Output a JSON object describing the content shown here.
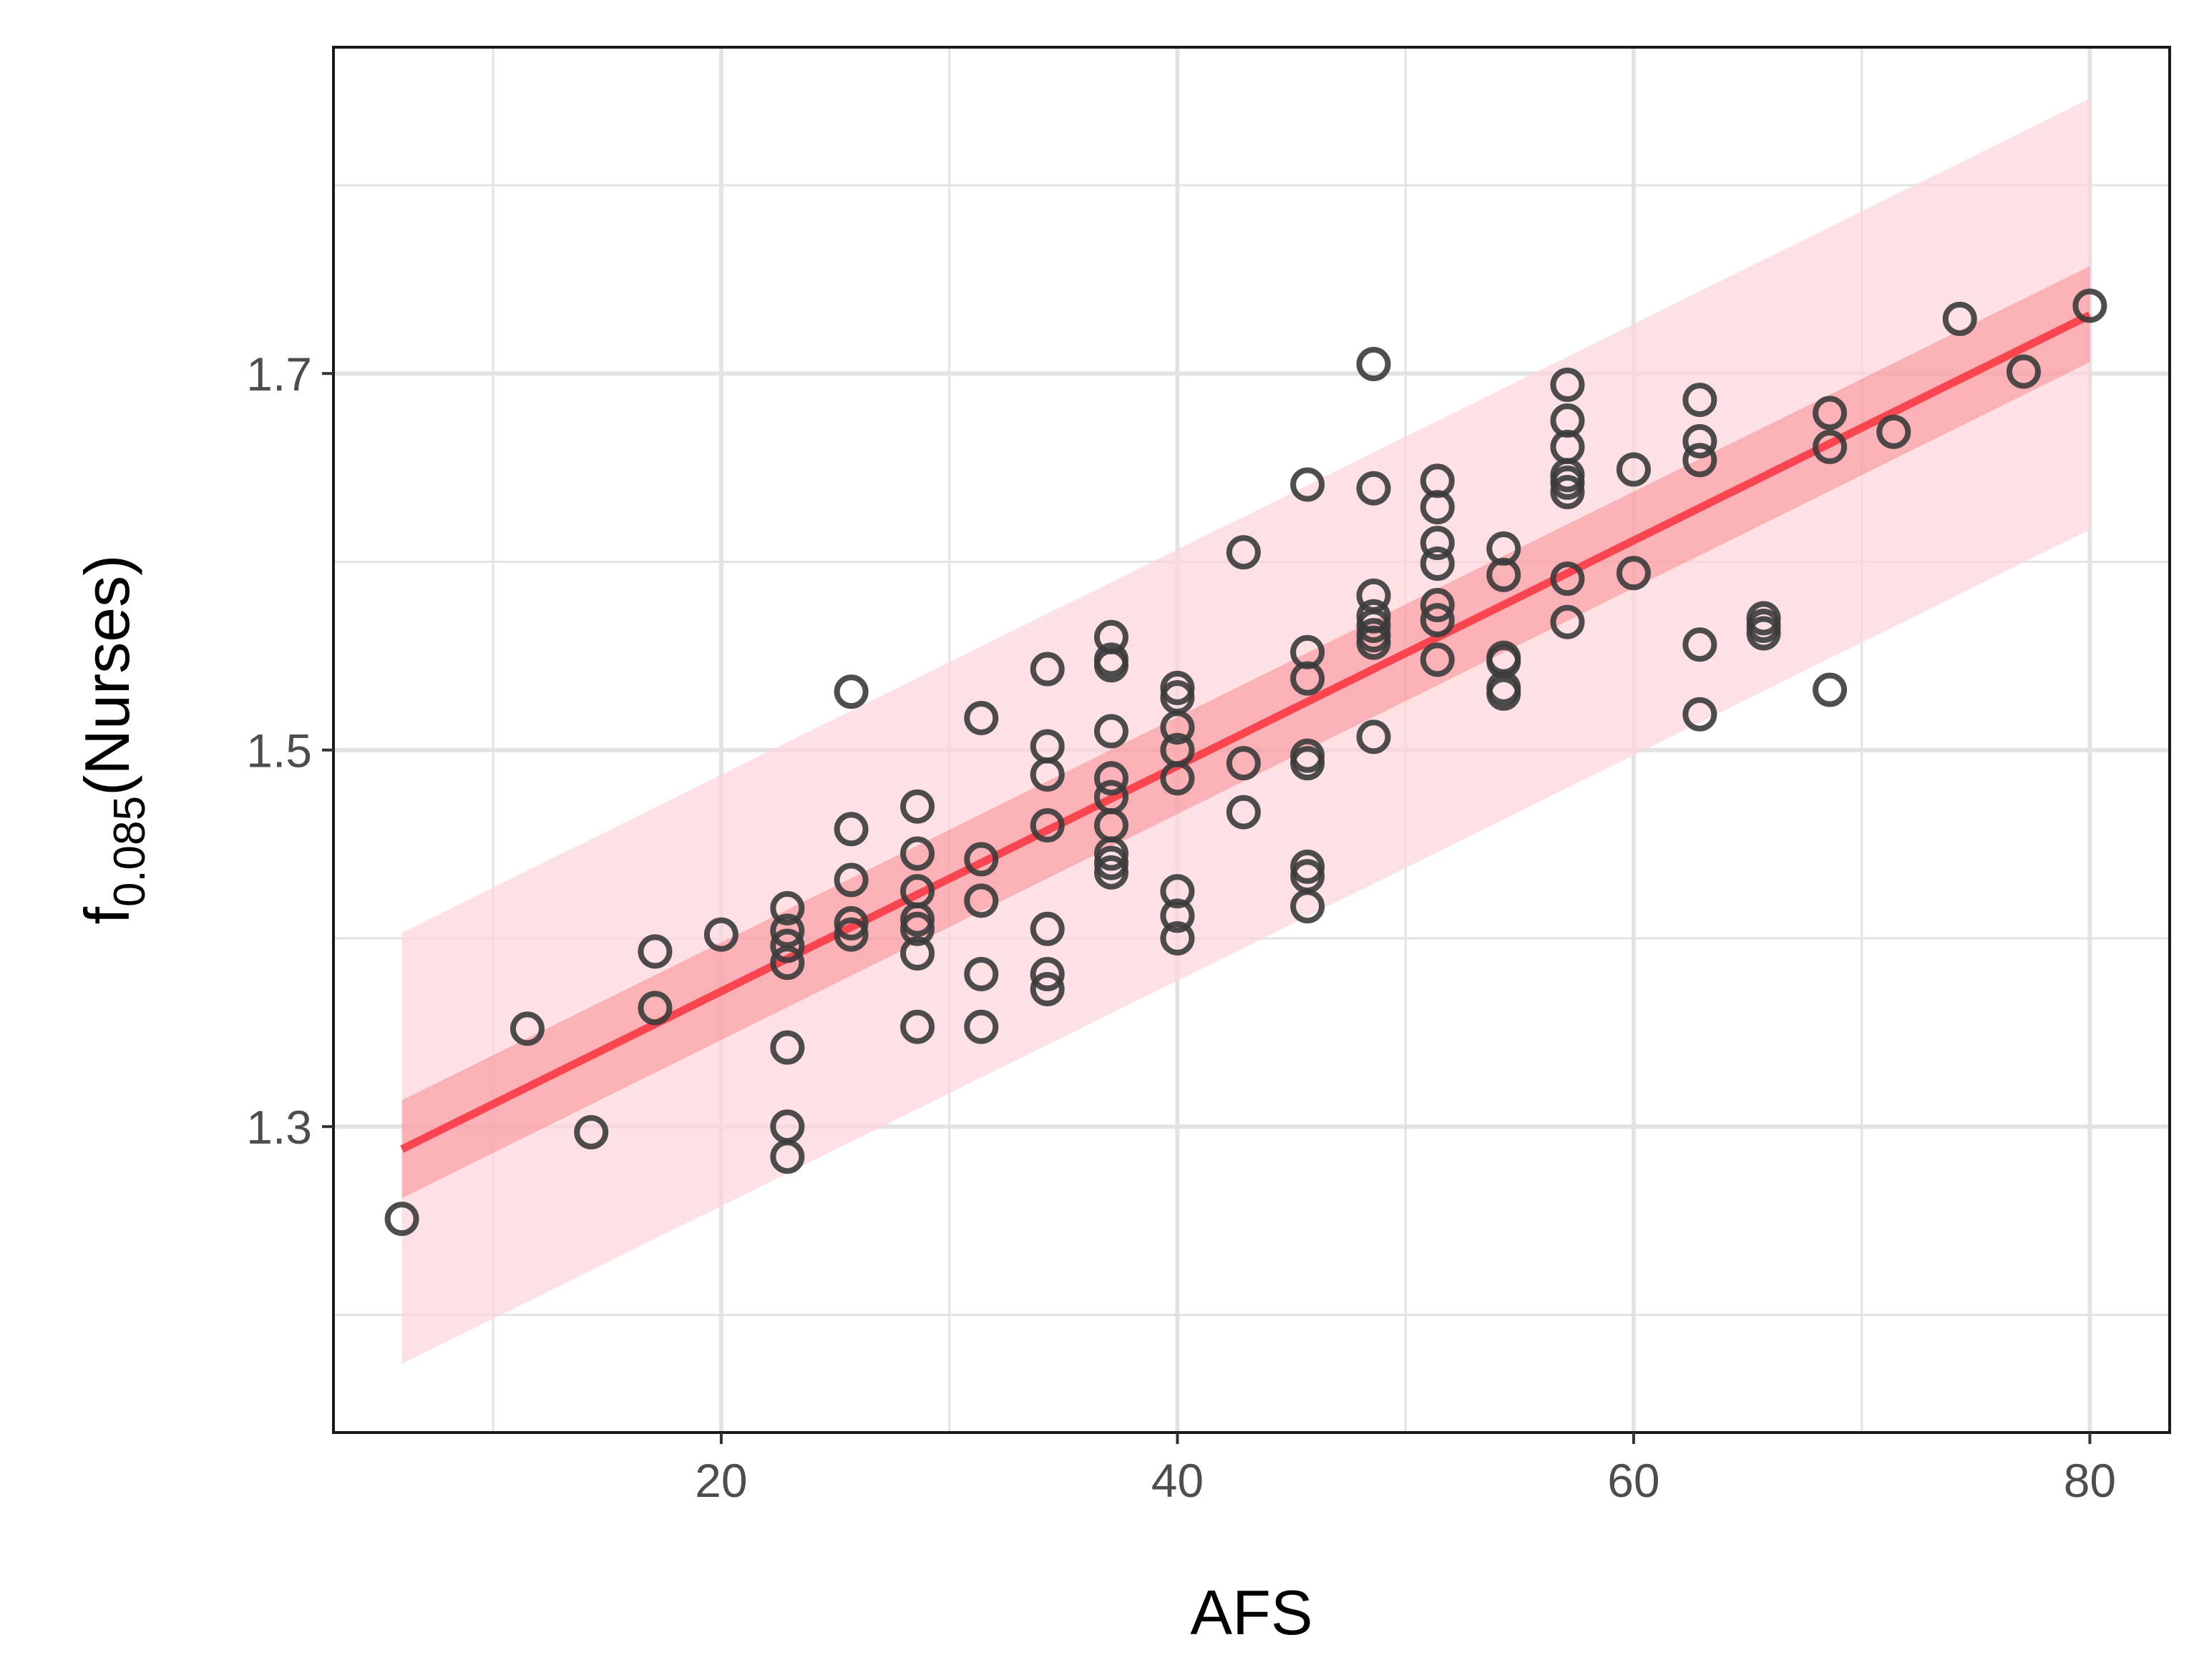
{
  "chart_data": {
    "type": "scatter",
    "title": "",
    "xlabel": "AFS",
    "ylabel": {
      "prefix": "f",
      "subscript": "0.085",
      "suffix": "(Nurses)"
    },
    "xlim": [
      3,
      83.5
    ],
    "ylim": [
      1.1375,
      1.8733
    ],
    "x_ticks": [
      "20",
      "40",
      "60",
      "80"
    ],
    "y_ticks": [
      "1.3",
      "1.5",
      "1.7"
    ],
    "grid": true,
    "legend": "none",
    "colors": {
      "points": "#3b3b3b",
      "fit_line": "#f8454f",
      "confidence_band": "#f8454f",
      "prediction_band": "#fcd4d8",
      "grid": "#e3e3e3",
      "frame": "#1a1a1a"
    },
    "points": [
      [
        6.0,
        1.251
      ],
      [
        11.5,
        1.352
      ],
      [
        14.3,
        1.297
      ],
      [
        17.1,
        1.393
      ],
      [
        17.1,
        1.363
      ],
      [
        20.0,
        1.402
      ],
      [
        22.9,
        1.416
      ],
      [
        22.9,
        1.404
      ],
      [
        22.9,
        1.396
      ],
      [
        22.9,
        1.387
      ],
      [
        22.9,
        1.342
      ],
      [
        22.9,
        1.3
      ],
      [
        22.9,
        1.284
      ],
      [
        25.7,
        1.531
      ],
      [
        25.7,
        1.458
      ],
      [
        25.7,
        1.431
      ],
      [
        25.7,
        1.408
      ],
      [
        25.7,
        1.402
      ],
      [
        28.6,
        1.47
      ],
      [
        28.6,
        1.445
      ],
      [
        28.6,
        1.425
      ],
      [
        28.6,
        1.41
      ],
      [
        28.6,
        1.405
      ],
      [
        28.6,
        1.392
      ],
      [
        28.6,
        1.353
      ],
      [
        31.4,
        1.517
      ],
      [
        31.4,
        1.442
      ],
      [
        31.4,
        1.42
      ],
      [
        31.4,
        1.381
      ],
      [
        31.4,
        1.353
      ],
      [
        34.3,
        1.543
      ],
      [
        34.3,
        1.502
      ],
      [
        34.3,
        1.487
      ],
      [
        34.3,
        1.46
      ],
      [
        34.3,
        1.405
      ],
      [
        34.3,
        1.381
      ],
      [
        34.3,
        1.373
      ],
      [
        37.1,
        1.56
      ],
      [
        37.1,
        1.548
      ],
      [
        37.1,
        1.545
      ],
      [
        37.1,
        1.51
      ],
      [
        37.1,
        1.485
      ],
      [
        37.1,
        1.475
      ],
      [
        37.1,
        1.46
      ],
      [
        37.1,
        1.445
      ],
      [
        37.1,
        1.44
      ],
      [
        37.1,
        1.435
      ],
      [
        40.0,
        1.533
      ],
      [
        40.0,
        1.528
      ],
      [
        40.0,
        1.512
      ],
      [
        40.0,
        1.5
      ],
      [
        40.0,
        1.485
      ],
      [
        40.0,
        1.425
      ],
      [
        40.0,
        1.412
      ],
      [
        40.0,
        1.4
      ],
      [
        42.9,
        1.605
      ],
      [
        42.9,
        1.493
      ],
      [
        42.9,
        1.467
      ],
      [
        45.7,
        1.641
      ],
      [
        45.7,
        1.552
      ],
      [
        45.7,
        1.538
      ],
      [
        45.7,
        1.497
      ],
      [
        45.7,
        1.493
      ],
      [
        45.7,
        1.438
      ],
      [
        45.7,
        1.433
      ],
      [
        45.7,
        1.417
      ],
      [
        48.6,
        1.705
      ],
      [
        48.6,
        1.639
      ],
      [
        48.6,
        1.582
      ],
      [
        48.6,
        1.571
      ],
      [
        48.6,
        1.566
      ],
      [
        48.6,
        1.561
      ],
      [
        48.6,
        1.557
      ],
      [
        48.6,
        1.507
      ],
      [
        51.4,
        1.643
      ],
      [
        51.4,
        1.629
      ],
      [
        51.4,
        1.61
      ],
      [
        51.4,
        1.599
      ],
      [
        51.4,
        1.577
      ],
      [
        51.4,
        1.569
      ],
      [
        51.4,
        1.548
      ],
      [
        54.3,
        1.607
      ],
      [
        54.3,
        1.593
      ],
      [
        54.3,
        1.549
      ],
      [
        54.3,
        1.547
      ],
      [
        54.3,
        1.533
      ],
      [
        54.3,
        1.53
      ],
      [
        57.1,
        1.694
      ],
      [
        57.1,
        1.675
      ],
      [
        57.1,
        1.661
      ],
      [
        57.1,
        1.646
      ],
      [
        57.1,
        1.642
      ],
      [
        57.1,
        1.637
      ],
      [
        57.1,
        1.591
      ],
      [
        57.1,
        1.568
      ],
      [
        60.0,
        1.649
      ],
      [
        60.0,
        1.594
      ],
      [
        62.9,
        1.686
      ],
      [
        62.9,
        1.664
      ],
      [
        62.9,
        1.654
      ],
      [
        62.9,
        1.556
      ],
      [
        62.9,
        1.519
      ],
      [
        65.7,
        1.57
      ],
      [
        65.7,
        1.566
      ],
      [
        65.7,
        1.562
      ],
      [
        68.6,
        1.679
      ],
      [
        68.6,
        1.661
      ],
      [
        68.6,
        1.532
      ],
      [
        71.4,
        1.669
      ],
      [
        74.3,
        1.729
      ],
      [
        77.1,
        1.701
      ],
      [
        80.0,
        1.736
      ]
    ],
    "fit": {
      "x": [
        6.0,
        80.0
      ],
      "y": [
        1.288,
        1.731
      ],
      "confidence_lower": [
        1.262,
        1.706
      ],
      "confidence_upper": [
        1.314,
        1.757
      ],
      "prediction_lower": [
        1.174,
        1.617
      ],
      "prediction_upper": [
        1.403,
        1.846
      ]
    }
  }
}
